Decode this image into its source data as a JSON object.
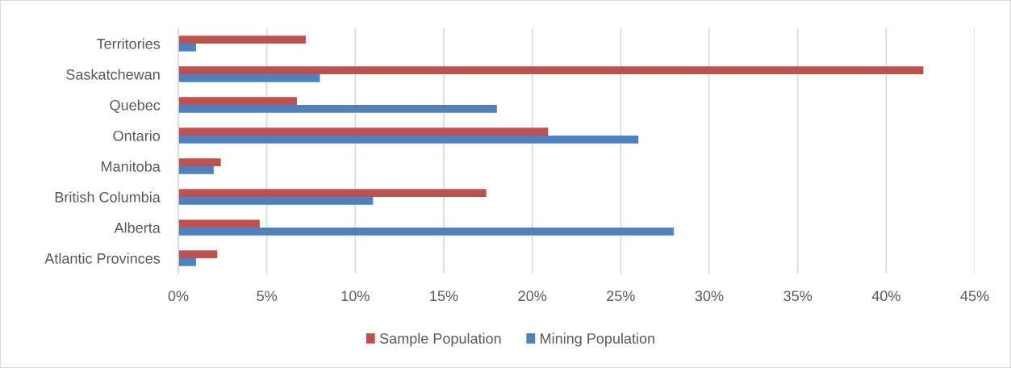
{
  "chart_data": {
    "type": "bar",
    "orientation": "horizontal",
    "categories": [
      "Territories",
      "Saskatchewan",
      "Quebec",
      "Ontario",
      "Manitoba",
      "British Columbia",
      "Alberta",
      "Atlantic Provinces"
    ],
    "series": [
      {
        "name": "Sample Population",
        "color": "#c0504d",
        "values": [
          7.2,
          42.1,
          6.7,
          20.9,
          2.4,
          17.4,
          4.6,
          2.2
        ]
      },
      {
        "name": "Mining Population",
        "color": "#4f81bd",
        "values": [
          1.0,
          8.0,
          18.0,
          26.0,
          2.0,
          11.0,
          28.0,
          1.0
        ]
      }
    ],
    "xlim": [
      0,
      45
    ],
    "xticks": [
      {
        "value": 0,
        "label": "0%"
      },
      {
        "value": 5,
        "label": "5%"
      },
      {
        "value": 10,
        "label": "10%"
      },
      {
        "value": 15,
        "label": "15%"
      },
      {
        "value": 20,
        "label": "20%"
      },
      {
        "value": 25,
        "label": "25%"
      },
      {
        "value": 30,
        "label": "30%"
      },
      {
        "value": 35,
        "label": "35%"
      },
      {
        "value": 40,
        "label": "40%"
      },
      {
        "value": 45,
        "label": "45%"
      }
    ],
    "grid": "x",
    "legend": "bottom"
  }
}
